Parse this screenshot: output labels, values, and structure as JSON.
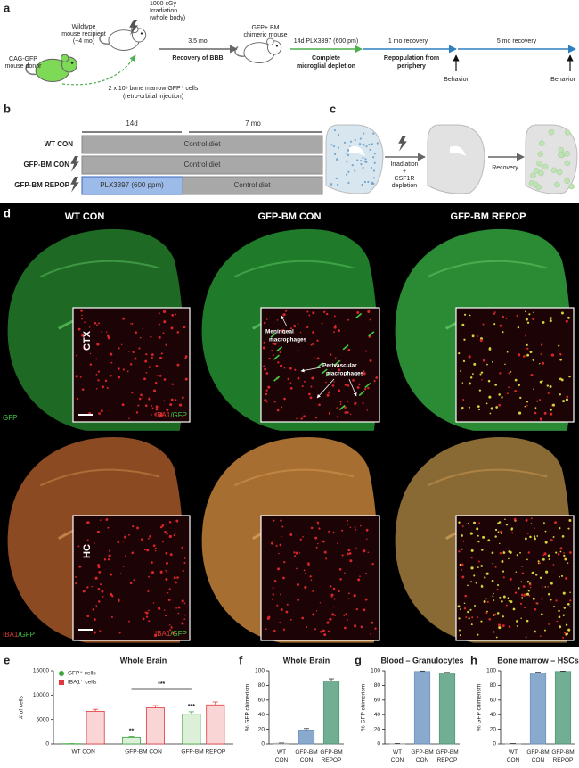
{
  "panel_a": {
    "label": "a",
    "irradiation": [
      "1000 cGy",
      "Irradiation",
      "(whole body)"
    ],
    "recipient": [
      "Wildtype",
      "mouse recipient",
      "(~4 mo)"
    ],
    "donor": [
      "CAG-GFP",
      "mouse donor"
    ],
    "injection": [
      "2 x 10⁶ bone marrow GFP⁺ cells",
      "(retro-orbital injection)"
    ],
    "interval": "3.5 mo",
    "interval_note": "Recovery of BBB",
    "chimera": [
      "GFP+ BM",
      "chimeric mouse"
    ],
    "steps": [
      {
        "time": "14d PLX3397 (600 pm)",
        "note": [
          "Complete",
          "microglial depletion"
        ]
      },
      {
        "time": "1 mo recovery",
        "note": [
          "Repopulation from",
          "periphery"
        ]
      },
      {
        "time": "5 mo recovery"
      }
    ],
    "behavior": [
      "Behavior",
      "Behavior"
    ]
  },
  "panel_b": {
    "label": "b",
    "periods": [
      "14d",
      "7 mo"
    ],
    "groups": [
      {
        "name": "WT CON",
        "diet": [
          "Control diet"
        ]
      },
      {
        "name": "GFP-BM CON",
        "diet": [
          "Control diet"
        ]
      },
      {
        "name": "GFP-BM REPOP",
        "diet": [
          "PLX3397 (600 ppm)",
          "Control diet"
        ]
      }
    ]
  },
  "panel_c": {
    "label": "c",
    "step1": [
      "Irradiation",
      "+",
      "CSF1R",
      "depletion"
    ],
    "step2": "Recovery"
  },
  "panel_d": {
    "label": "d",
    "columns": [
      "WT CON",
      "GFP-BM CON",
      "GFP-BM REPOP"
    ],
    "regions": [
      "CTX",
      "HC"
    ],
    "top_stain": "GFP",
    "bottom_stain": [
      "IBA1",
      "/GFP"
    ],
    "inset_stain": [
      "IBA1",
      "/GFP"
    ],
    "meningeal": [
      "Meningeal",
      "macrophages"
    ],
    "perivascular": [
      "Perivascular",
      "macrophages"
    ]
  },
  "chart_data": [
    {
      "type": "bar",
      "panel": "e",
      "title": "Whole Brain",
      "y_label": "# of cells",
      "categories": [
        "WT CON",
        "GFP-BM CON",
        "GFP-BM REPOP"
      ],
      "series": [
        {
          "name": "GFP⁺ cells",
          "color": "#3aa53a",
          "fill": "#dcefd8",
          "values": [
            50,
            1400,
            6100
          ],
          "errors": [
            20,
            150,
            500
          ]
        },
        {
          "name": "IBA1⁺ cells",
          "color": "#e0383c",
          "fill": "#f9d5d5",
          "values": [
            6700,
            7400,
            8000
          ],
          "errors": [
            400,
            450,
            600
          ]
        }
      ],
      "ylim": [
        0,
        15000
      ],
      "yticks": [
        0,
        5000,
        10000,
        15000
      ],
      "legend": "upper left",
      "significance": [
        "**",
        "***",
        "***"
      ]
    },
    {
      "type": "bar",
      "panel": "f",
      "title": "Whole Brain",
      "y_label": "% GFP chimerism",
      "categories": [
        "WT CON",
        "GFP-BM CON",
        "GFP-BM REPOP"
      ],
      "colors": [
        "#b0b0b0",
        "#6b93c0",
        "#4e9a78"
      ],
      "values": [
        1,
        19,
        86
      ],
      "errors": [
        0.3,
        2,
        3
      ],
      "ylim": [
        0,
        100
      ],
      "yticks": [
        0,
        20,
        40,
        60,
        80,
        100
      ]
    },
    {
      "type": "bar",
      "panel": "g",
      "title": "Blood – Granulocytes",
      "y_label": "% GFP chimerism",
      "categories": [
        "WT CON",
        "GFP-BM CON",
        "GFP-BM REPOP"
      ],
      "colors": [
        "#b0b0b0",
        "#6b93c0",
        "#4e9a78"
      ],
      "values": [
        0.5,
        99,
        97
      ],
      "errors": [
        0.2,
        0.6,
        0.8
      ],
      "ylim": [
        0,
        100
      ],
      "yticks": [
        0,
        20,
        40,
        60,
        80,
        100
      ]
    },
    {
      "type": "bar",
      "panel": "h",
      "title": "Bone marrow – HSCs",
      "y_label": "% GFP chimerism",
      "categories": [
        "WT CON",
        "GFP-BM CON",
        "GFP-BM REPOP"
      ],
      "colors": [
        "#b0b0b0",
        "#6b93c0",
        "#4e9a78"
      ],
      "values": [
        0.5,
        97,
        99
      ],
      "errors": [
        0.2,
        1,
        0.5
      ],
      "ylim": [
        0,
        100
      ],
      "yticks": [
        0,
        20,
        40,
        60,
        80,
        100
      ]
    }
  ]
}
